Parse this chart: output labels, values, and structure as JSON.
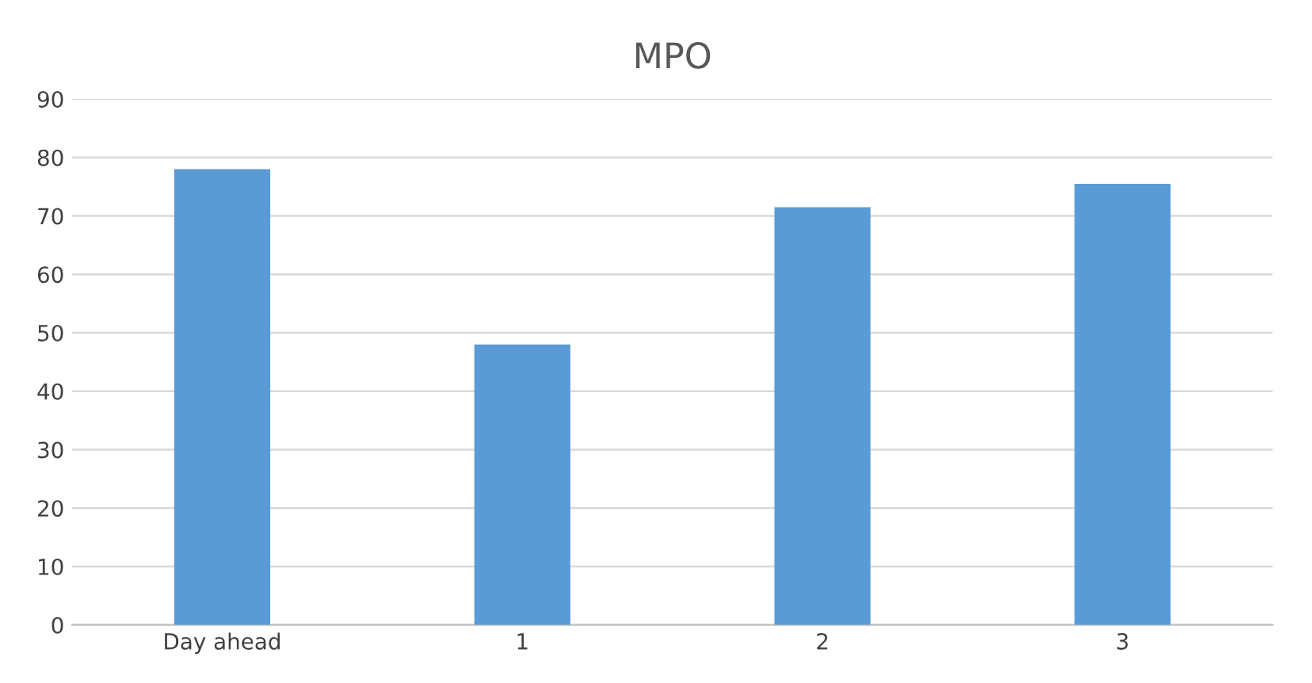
{
  "chart_data": {
    "type": "bar",
    "title": "MPO",
    "categories": [
      "Day ahead",
      "1",
      "2",
      "3"
    ],
    "values": [
      78,
      48,
      71.5,
      75.5
    ],
    "color": "#5b9bd5",
    "ylim": [
      0,
      90
    ],
    "yticks": [
      0,
      10,
      20,
      30,
      40,
      50,
      60,
      70,
      80,
      90
    ],
    "grid": "y",
    "legend": false
  }
}
